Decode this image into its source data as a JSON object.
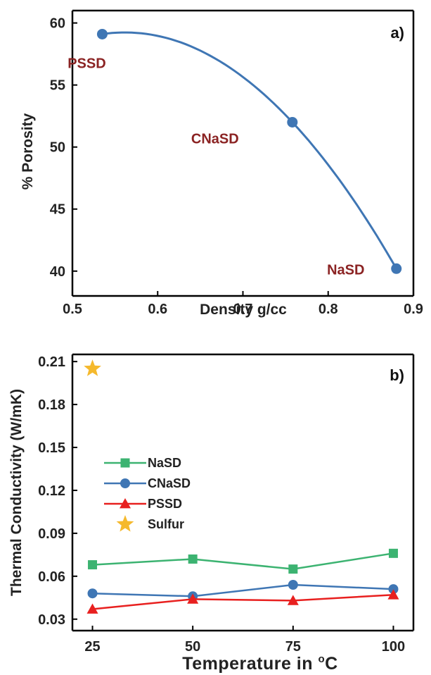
{
  "chart_data": [
    {
      "type": "scatter",
      "panel_label": "a)",
      "xlabel": "Density g/cc",
      "ylabel": "% Porosity",
      "xlim": [
        0.5,
        0.9
      ],
      "ylim": [
        38,
        61
      ],
      "xticks": [
        "0.5",
        "0.6",
        "0.7",
        "0.8",
        "0.9"
      ],
      "yticks": [
        "40",
        "45",
        "50",
        "55",
        "60"
      ],
      "x": [
        0.535,
        0.758,
        0.88
      ],
      "y": [
        59.1,
        52.0,
        40.2
      ],
      "point_labels": [
        "PSSD",
        "CNaSD",
        "NaSD"
      ],
      "fit": "smooth curve",
      "colors": {
        "line": "#3f76b4",
        "marker": "#3f76b4",
        "label": "#8b2323"
      }
    },
    {
      "type": "line",
      "panel_label": "b)",
      "xlabel_main": "Temperature in ",
      "xlabel_sup": "o",
      "xlabel_tail": "C",
      "ylabel": "Thermal Conductivity (W/mK)",
      "xlim": [
        20,
        105
      ],
      "ylim": [
        0.022,
        0.215
      ],
      "xticks": [
        "25",
        "50",
        "75",
        "100"
      ],
      "yticks": [
        "0.03",
        "0.06",
        "0.09",
        "0.12",
        "0.15",
        "0.18",
        "0.21"
      ],
      "x": [
        25,
        50,
        75,
        100
      ],
      "series": [
        {
          "name": "NaSD",
          "values": [
            0.068,
            0.072,
            0.065,
            0.076
          ],
          "color": "#3cb371",
          "marker": "square"
        },
        {
          "name": "CNaSD",
          "values": [
            0.048,
            0.046,
            0.054,
            0.051
          ],
          "color": "#3f76b4",
          "marker": "circle"
        },
        {
          "name": "PSSD",
          "values": [
            0.037,
            0.044,
            0.043,
            0.047
          ],
          "color": "#e8201f",
          "marker": "triangle"
        },
        {
          "name": "Sulfur",
          "values": [
            0.205,
            null,
            null,
            null
          ],
          "color": "#f5b92d",
          "marker": "star"
        }
      ],
      "legend": "middle-left"
    }
  ]
}
